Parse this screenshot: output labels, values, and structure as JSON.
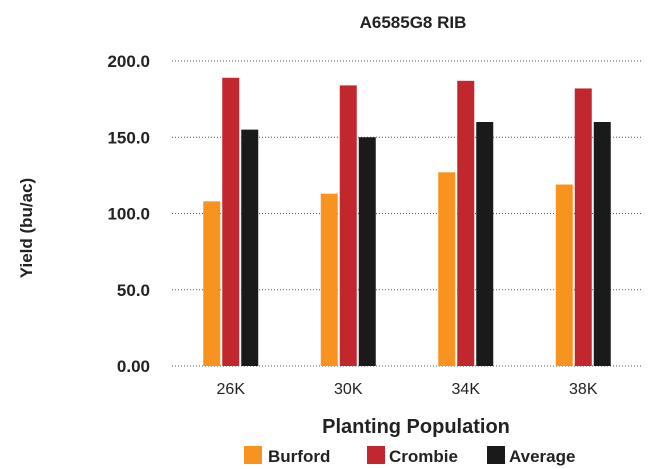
{
  "chart_data": {
    "type": "bar",
    "title": "A6585G8 RIB",
    "xlabel": "Planting Population",
    "ylabel": "Yield (bu/ac)",
    "categories": [
      "26K",
      "30K",
      "34K",
      "38K"
    ],
    "series": [
      {
        "name": "Burford",
        "color": "#f7931e",
        "values": [
          108,
          113,
          127,
          119
        ]
      },
      {
        "name": "Crombie",
        "color": "#c1272d",
        "values": [
          189,
          184,
          187,
          182
        ]
      },
      {
        "name": "Average",
        "color": "#1a1a1a",
        "values": [
          155,
          150,
          160,
          160
        ]
      }
    ],
    "ylim": [
      0,
      200
    ],
    "yticks": [
      0,
      50,
      100,
      150,
      200
    ],
    "ytick_labels": [
      "0.00",
      "50.0",
      "100.0",
      "150.0",
      "200.0"
    ],
    "grid": true,
    "legend_position": "bottom"
  }
}
